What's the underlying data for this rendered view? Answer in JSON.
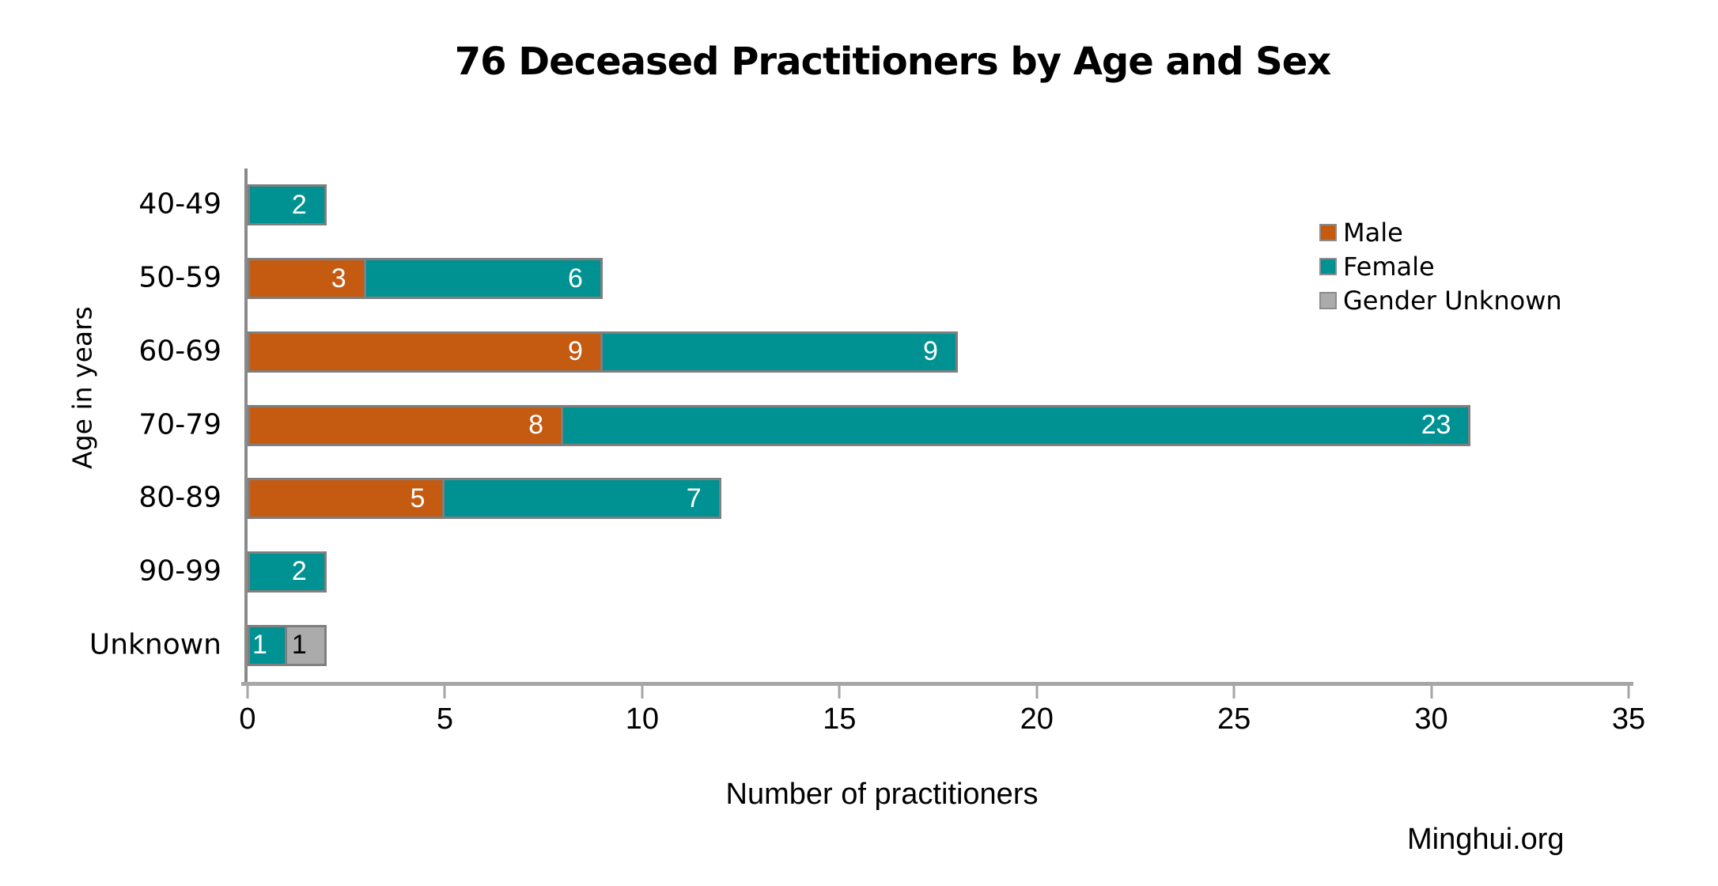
{
  "source": "Minghui.org",
  "chart_data": {
    "type": "bar",
    "orientation": "horizontal",
    "stacked": true,
    "title": "76 Deceased Practitioners by Age and Sex",
    "xlabel": "Number of practitioners",
    "ylabel": "Age in years",
    "xlim": [
      0,
      35
    ],
    "xticks": [
      0,
      5,
      10,
      15,
      20,
      25,
      30,
      35
    ],
    "categories": [
      "40-49",
      "50-59",
      "60-69",
      "70-79",
      "80-89",
      "90-99",
      "Unknown"
    ],
    "series": [
      {
        "name": "Male",
        "color": "#C55A11",
        "label_color": "#FFFFFF",
        "values": [
          0,
          3,
          9,
          8,
          5,
          0,
          0
        ]
      },
      {
        "name": "Female",
        "color": "#009292",
        "label_color": "#FFFFFF",
        "values": [
          2,
          6,
          9,
          23,
          7,
          2,
          1
        ]
      },
      {
        "name": "Gender Unknown",
        "color": "#ABABAB",
        "label_color": "#000000",
        "values": [
          0,
          0,
          0,
          0,
          0,
          0,
          1
        ]
      }
    ],
    "bar_border_color": "#7F7F7F",
    "axis_color": "#A6A6A6",
    "grid": false,
    "legend_position": "upper right"
  }
}
